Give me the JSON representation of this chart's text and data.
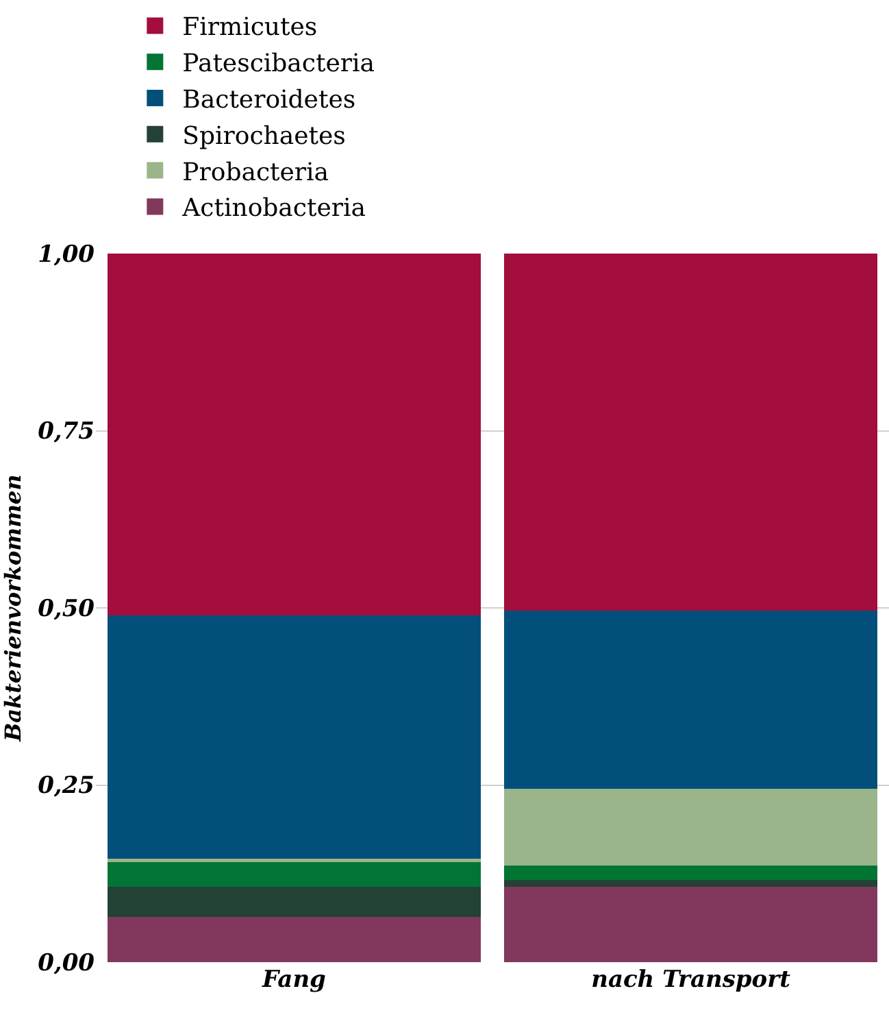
{
  "chart_data": {
    "type": "bar",
    "stacked": true,
    "ylabel": "Bakterienvorkommen",
    "categories": [
      "Fang",
      "nach Transport"
    ],
    "series": [
      {
        "name": "Actinobacteria",
        "color": "#81385c",
        "values": [
          0.064,
          0.106
        ]
      },
      {
        "name": "Spirochaetes",
        "color": "#224235",
        "values": [
          0.042,
          0.01
        ]
      },
      {
        "name": "Patescibacteria",
        "color": "#027434",
        "values": [
          0.035,
          0.02
        ]
      },
      {
        "name": "Probacteria",
        "color": "#9ab58a",
        "values": [
          0.005,
          0.109
        ]
      },
      {
        "name": "Bacteroidetes",
        "color": "#024f7c",
        "values": [
          0.343,
          0.251
        ]
      },
      {
        "name": "Firmicutes",
        "color": "#a30e3c",
        "values": [
          0.511,
          0.504
        ]
      }
    ],
    "ylim": [
      0,
      1
    ],
    "yticks": [
      {
        "value": 0,
        "label": "0,00"
      },
      {
        "value": 0.25,
        "label": "0,25"
      },
      {
        "value": 0.5,
        "label": "0,50"
      },
      {
        "value": 0.75,
        "label": "0,75"
      },
      {
        "value": 1,
        "label": "1,00"
      }
    ],
    "grid": "y",
    "legend": "top"
  }
}
